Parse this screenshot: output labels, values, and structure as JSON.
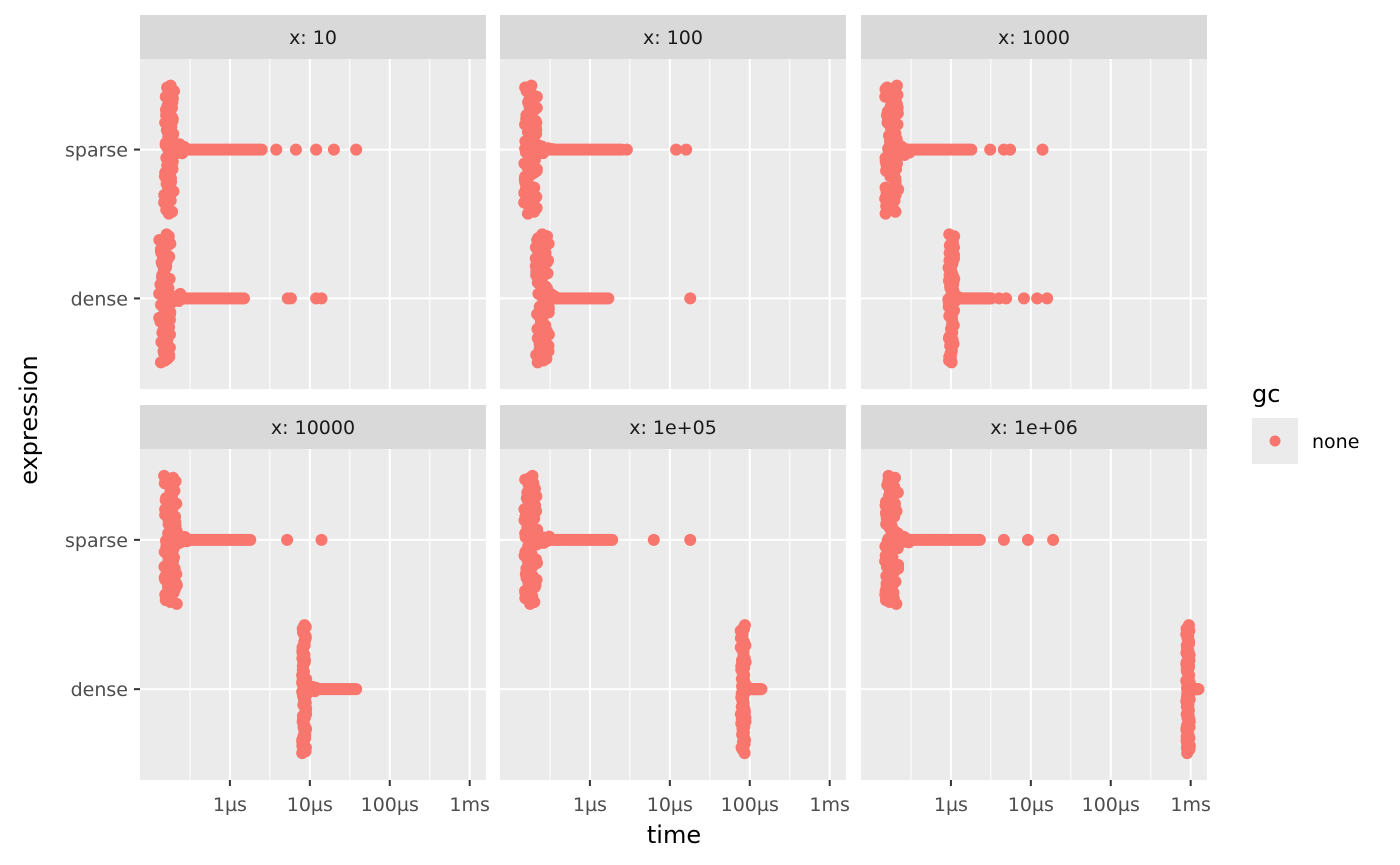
{
  "chart_data": {
    "type": "scatter",
    "xlabel": "time",
    "ylabel": "expression",
    "x_scale": "log",
    "x_ticks": [
      {
        "value": 1e-06,
        "label": "1µs"
      },
      {
        "value": 1e-05,
        "label": "10µs"
      },
      {
        "value": 0.0001,
        "label": "100µs"
      },
      {
        "value": 0.001,
        "label": "1ms"
      }
    ],
    "xlim": [
      7.5e-08,
      0.0016
    ],
    "categories": [
      "sparse",
      "dense"
    ],
    "legend": {
      "title": "gc",
      "entries": [
        "none"
      ],
      "position": "right"
    },
    "series_color": "#F8766D",
    "grid": true,
    "panels": [
      {
        "label": "x: 10",
        "series": [
          {
            "expression": "sparse",
            "median": 1.8e-07,
            "body_min": 1.5e-07,
            "body_max": 2e-07,
            "tail_to": 2.5e-06,
            "outliers": [
              3.8e-06,
              6.7e-06,
              1.2e-05,
              2e-05,
              3.8e-05
            ]
          },
          {
            "expression": "dense",
            "median": 1.6e-07,
            "body_min": 1.3e-07,
            "body_max": 1.8e-07,
            "tail_to": 1.5e-06,
            "outliers": [
              5.3e-06,
              5.8e-06,
              1.2e-05,
              1.4e-05
            ]
          }
        ]
      },
      {
        "label": "x: 100",
        "series": [
          {
            "expression": "sparse",
            "median": 1.9e-07,
            "body_min": 1.5e-07,
            "body_max": 2.2e-07,
            "tail_to": 2.5e-06,
            "outliers": [
              2.9e-06,
              1.2e-05,
              1.6e-05
            ]
          },
          {
            "expression": "dense",
            "median": 2.6e-07,
            "body_min": 2.1e-07,
            "body_max": 3.1e-07,
            "tail_to": 1.7e-06,
            "outliers": [
              1.8e-05
            ]
          }
        ]
      },
      {
        "label": "x: 1000",
        "series": [
          {
            "expression": "sparse",
            "median": 1.9e-07,
            "body_min": 1.5e-07,
            "body_max": 2.2e-07,
            "tail_to": 1.8e-06,
            "outliers": [
              3.1e-06,
              4.6e-06,
              5.5e-06,
              1.4e-05
            ]
          },
          {
            "expression": "dense",
            "median": 1e-06,
            "body_min": 9.2e-07,
            "body_max": 1.1e-06,
            "tail_to": 3.2e-06,
            "outliers": [
              4e-06,
              4.9e-06,
              8.2e-06,
              1.2e-05,
              1.6e-05
            ]
          }
        ]
      },
      {
        "label": "x: 10000",
        "series": [
          {
            "expression": "sparse",
            "median": 1.9e-07,
            "body_min": 1.5e-07,
            "body_max": 2.2e-07,
            "tail_to": 1.8e-06,
            "outliers": [
              5.2e-06,
              1.4e-05
            ]
          },
          {
            "expression": "dense",
            "median": 8.5e-06,
            "body_min": 8e-06,
            "body_max": 9e-06,
            "tail_to": 3.8e-05,
            "outliers": []
          }
        ]
      },
      {
        "label": "x: 1e+05",
        "series": [
          {
            "expression": "sparse",
            "median": 1.9e-07,
            "body_min": 1.5e-07,
            "body_max": 2.2e-07,
            "tail_to": 1.9e-06,
            "outliers": [
              6.3e-06,
              1.8e-05
            ]
          },
          {
            "expression": "dense",
            "median": 8.3e-05,
            "body_min": 7.7e-05,
            "body_max": 8.9e-05,
            "tail_to": 0.00014,
            "outliers": []
          }
        ]
      },
      {
        "label": "x: 1e+06",
        "series": [
          {
            "expression": "sparse",
            "median": 1.9e-07,
            "body_min": 1.5e-07,
            "body_max": 2.2e-07,
            "tail_to": 2.3e-06,
            "outliers": [
              4.6e-06,
              9.2e-06,
              1.9e-05
            ]
          },
          {
            "expression": "dense",
            "median": 0.00093,
            "body_min": 0.00088,
            "body_max": 0.00098,
            "tail_to": 0.00125,
            "outliers": []
          }
        ]
      }
    ]
  }
}
